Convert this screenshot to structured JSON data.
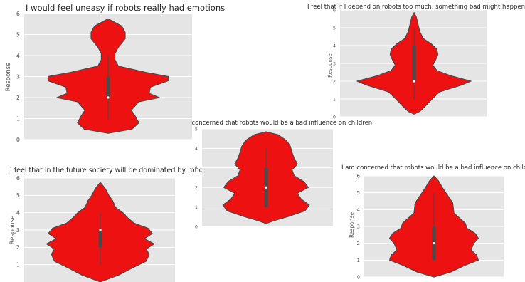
{
  "chart_data": [
    {
      "type": "violin",
      "title": "I would feel uneasy if robots really had emotions",
      "ylabel": "Response",
      "ylim": [
        0,
        6
      ],
      "yticks": [
        "0",
        "1",
        "2",
        "3",
        "4",
        "5",
        "6"
      ],
      "density_profile": [
        [
          0.3,
          0.0
        ],
        [
          0.5,
          0.35
        ],
        [
          0.8,
          0.45
        ],
        [
          1.1,
          0.4
        ],
        [
          1.4,
          0.34
        ],
        [
          1.8,
          0.45
        ],
        [
          2.0,
          0.75
        ],
        [
          2.2,
          0.6
        ],
        [
          2.5,
          0.62
        ],
        [
          2.8,
          0.88
        ],
        [
          3.0,
          0.88
        ],
        [
          3.2,
          0.55
        ],
        [
          3.5,
          0.15
        ],
        [
          3.8,
          0.1
        ],
        [
          4.1,
          0.1
        ],
        [
          4.4,
          0.15
        ],
        [
          4.8,
          0.25
        ],
        [
          5.1,
          0.25
        ],
        [
          5.4,
          0.2
        ],
        [
          5.75,
          0.0
        ]
      ],
      "box": {
        "q1": 2,
        "median": 2,
        "q3": 3,
        "whisker_low": 1,
        "whisker_high": 4
      },
      "color": "#ee1111",
      "grid": true
    },
    {
      "type": "violin",
      "title": "I feel that if I depend on robots too much, something bad might happen.",
      "ylabel": "Response",
      "ylim": [
        0,
        6
      ],
      "yticks": [
        "0",
        "1",
        "2",
        "3",
        "4",
        "5",
        "6"
      ],
      "density_profile": [
        [
          0.15,
          0.0
        ],
        [
          0.3,
          0.1
        ],
        [
          0.6,
          0.2
        ],
        [
          1.0,
          0.32
        ],
        [
          1.4,
          0.45
        ],
        [
          1.8,
          0.85
        ],
        [
          2.0,
          1.0
        ],
        [
          2.3,
          0.65
        ],
        [
          2.6,
          0.4
        ],
        [
          2.9,
          0.33
        ],
        [
          3.2,
          0.38
        ],
        [
          3.5,
          0.42
        ],
        [
          3.8,
          0.4
        ],
        [
          4.1,
          0.3
        ],
        [
          4.4,
          0.16
        ],
        [
          4.8,
          0.1
        ],
        [
          5.2,
          0.07
        ],
        [
          5.6,
          0.04
        ],
        [
          5.85,
          0.0
        ]
      ],
      "box": {
        "q1": 2,
        "median": 2,
        "q3": 4,
        "whisker_low": 1,
        "whisker_high": 5
      },
      "color": "#ee1111",
      "grid": true
    },
    {
      "type": "violin",
      "title": "I am concerned that robots would be a bad influence on children.",
      "ylabel": "",
      "ylim": [
        0,
        5
      ],
      "yticks": [
        "0",
        "1",
        "2",
        "3",
        "4",
        "5"
      ],
      "density_profile": [
        [
          0.15,
          0.0
        ],
        [
          0.3,
          0.15
        ],
        [
          0.5,
          0.4
        ],
        [
          0.8,
          0.72
        ],
        [
          1.1,
          0.8
        ],
        [
          1.4,
          0.65
        ],
        [
          1.7,
          0.58
        ],
        [
          2.0,
          0.78
        ],
        [
          2.3,
          0.7
        ],
        [
          2.6,
          0.52
        ],
        [
          2.9,
          0.48
        ],
        [
          3.2,
          0.58
        ],
        [
          3.5,
          0.52
        ],
        [
          3.8,
          0.48
        ],
        [
          4.1,
          0.45
        ],
        [
          4.4,
          0.38
        ],
        [
          4.7,
          0.22
        ],
        [
          4.85,
          0.0
        ]
      ],
      "box": {
        "q1": 1,
        "median": 2,
        "q3": 3,
        "whisker_low": 1,
        "whisker_high": 4
      },
      "color": "#ee1111",
      "grid": true
    },
    {
      "type": "violin",
      "title": "I feel that in the future society will be dominated by robots.",
      "ylabel": "Response",
      "ylim": [
        0,
        6
      ],
      "yticks": [
        "1",
        "2",
        "3",
        "4",
        "5",
        "6"
      ],
      "density_profile": [
        [
          0.0,
          0.0
        ],
        [
          0.4,
          0.3
        ],
        [
          0.8,
          0.52
        ],
        [
          1.2,
          0.75
        ],
        [
          1.6,
          0.8
        ],
        [
          1.9,
          0.75
        ],
        [
          2.2,
          0.88
        ],
        [
          2.5,
          0.72
        ],
        [
          2.8,
          0.85
        ],
        [
          3.1,
          0.78
        ],
        [
          3.4,
          0.55
        ],
        [
          3.7,
          0.45
        ],
        [
          4.0,
          0.37
        ],
        [
          4.3,
          0.25
        ],
        [
          4.7,
          0.2
        ],
        [
          5.0,
          0.14
        ],
        [
          5.4,
          0.08
        ],
        [
          5.75,
          0.0
        ]
      ],
      "box": {
        "q1": 2,
        "median": 3,
        "q3": 3,
        "whisker_low": 1,
        "whisker_high": 4
      },
      "color": "#ee1111",
      "grid": true
    },
    {
      "type": "violin",
      "title": "I am concerned that robots would be a bad influence on children.",
      "ylabel": "Response",
      "ylim": [
        0,
        6
      ],
      "yticks": [
        "0",
        "1",
        "2",
        "3",
        "4",
        "5",
        "6"
      ],
      "density_profile": [
        [
          0.0,
          0.0
        ],
        [
          0.3,
          0.3
        ],
        [
          0.7,
          0.55
        ],
        [
          1.0,
          0.78
        ],
        [
          1.3,
          0.75
        ],
        [
          1.6,
          0.65
        ],
        [
          2.0,
          0.7
        ],
        [
          2.3,
          0.78
        ],
        [
          2.6,
          0.72
        ],
        [
          2.9,
          0.58
        ],
        [
          3.2,
          0.55
        ],
        [
          3.5,
          0.45
        ],
        [
          3.8,
          0.35
        ],
        [
          4.1,
          0.34
        ],
        [
          4.4,
          0.33
        ],
        [
          4.8,
          0.25
        ],
        [
          5.3,
          0.15
        ],
        [
          5.7,
          0.08
        ],
        [
          6.0,
          0.0
        ]
      ],
      "box": {
        "q1": 1,
        "median": 2,
        "q3": 3,
        "whisker_low": 1,
        "whisker_high": 5
      },
      "color": "#ee1111",
      "grid": true
    }
  ]
}
